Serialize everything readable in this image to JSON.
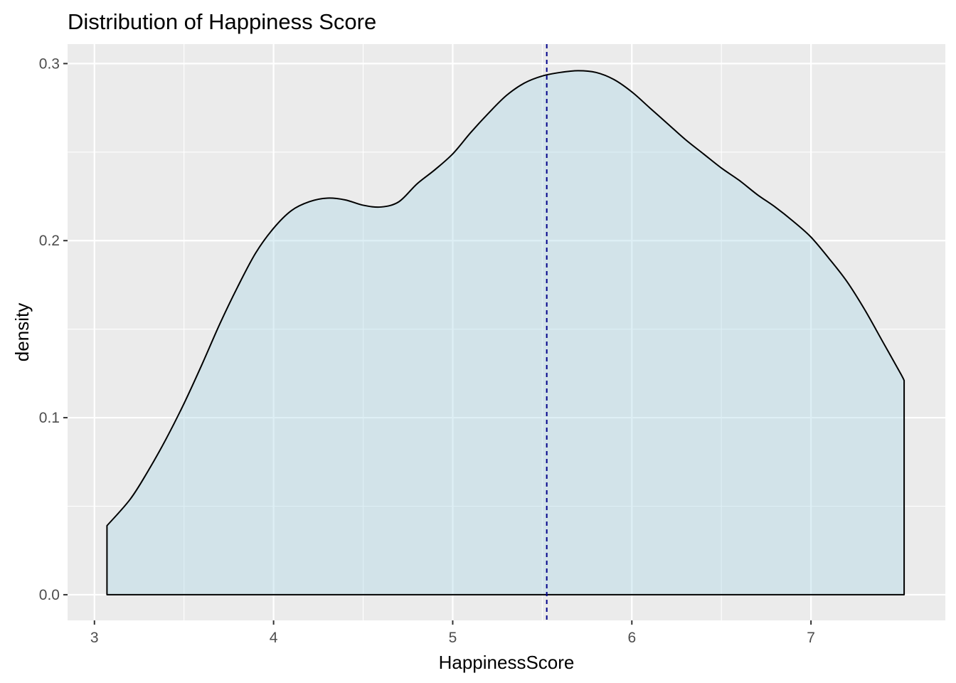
{
  "chart_data": {
    "type": "area",
    "title": "Distribution of Happiness Score",
    "xlabel": "HappinessScore",
    "ylabel": "density",
    "xlim": [
      2.85,
      7.75
    ],
    "ylim": [
      -0.0145,
      0.311
    ],
    "x_ticks": [
      3,
      4,
      5,
      6,
      7
    ],
    "x_tick_labels": [
      "3",
      "4",
      "5",
      "6",
      "7"
    ],
    "y_ticks": [
      0.0,
      0.1,
      0.2,
      0.3
    ],
    "y_tick_labels": [
      "0.0",
      "0.1",
      "0.2",
      "0.3"
    ],
    "grid": true,
    "fill_color": "#ADD8E6",
    "fill_alpha": 0.4,
    "line_color": "#000000",
    "vline": {
      "x": 5.525,
      "color": "#00008B",
      "style": "dashed"
    },
    "series": [
      {
        "x": [
          3.07,
          3.2,
          3.3,
          3.4,
          3.5,
          3.6,
          3.7,
          3.8,
          3.9,
          4.0,
          4.1,
          4.2,
          4.3,
          4.4,
          4.5,
          4.6,
          4.7,
          4.8,
          4.9,
          5.0,
          5.1,
          5.2,
          5.3,
          5.4,
          5.5,
          5.6,
          5.7,
          5.8,
          5.9,
          6.0,
          6.1,
          6.2,
          6.3,
          6.4,
          6.5,
          6.6,
          6.7,
          6.8,
          6.9,
          7.0,
          7.1,
          7.2,
          7.3,
          7.4,
          7.5,
          7.52
        ],
        "y": [
          0.039,
          0.054,
          0.07,
          0.088,
          0.108,
          0.13,
          0.153,
          0.174,
          0.193,
          0.207,
          0.217,
          0.222,
          0.224,
          0.223,
          0.22,
          0.219,
          0.222,
          0.232,
          0.24,
          0.249,
          0.261,
          0.272,
          0.282,
          0.289,
          0.293,
          0.295,
          0.296,
          0.295,
          0.291,
          0.284,
          0.275,
          0.266,
          0.257,
          0.249,
          0.241,
          0.234,
          0.226,
          0.219,
          0.211,
          0.202,
          0.19,
          0.177,
          0.161,
          0.143,
          0.125,
          0.121
        ]
      }
    ]
  }
}
